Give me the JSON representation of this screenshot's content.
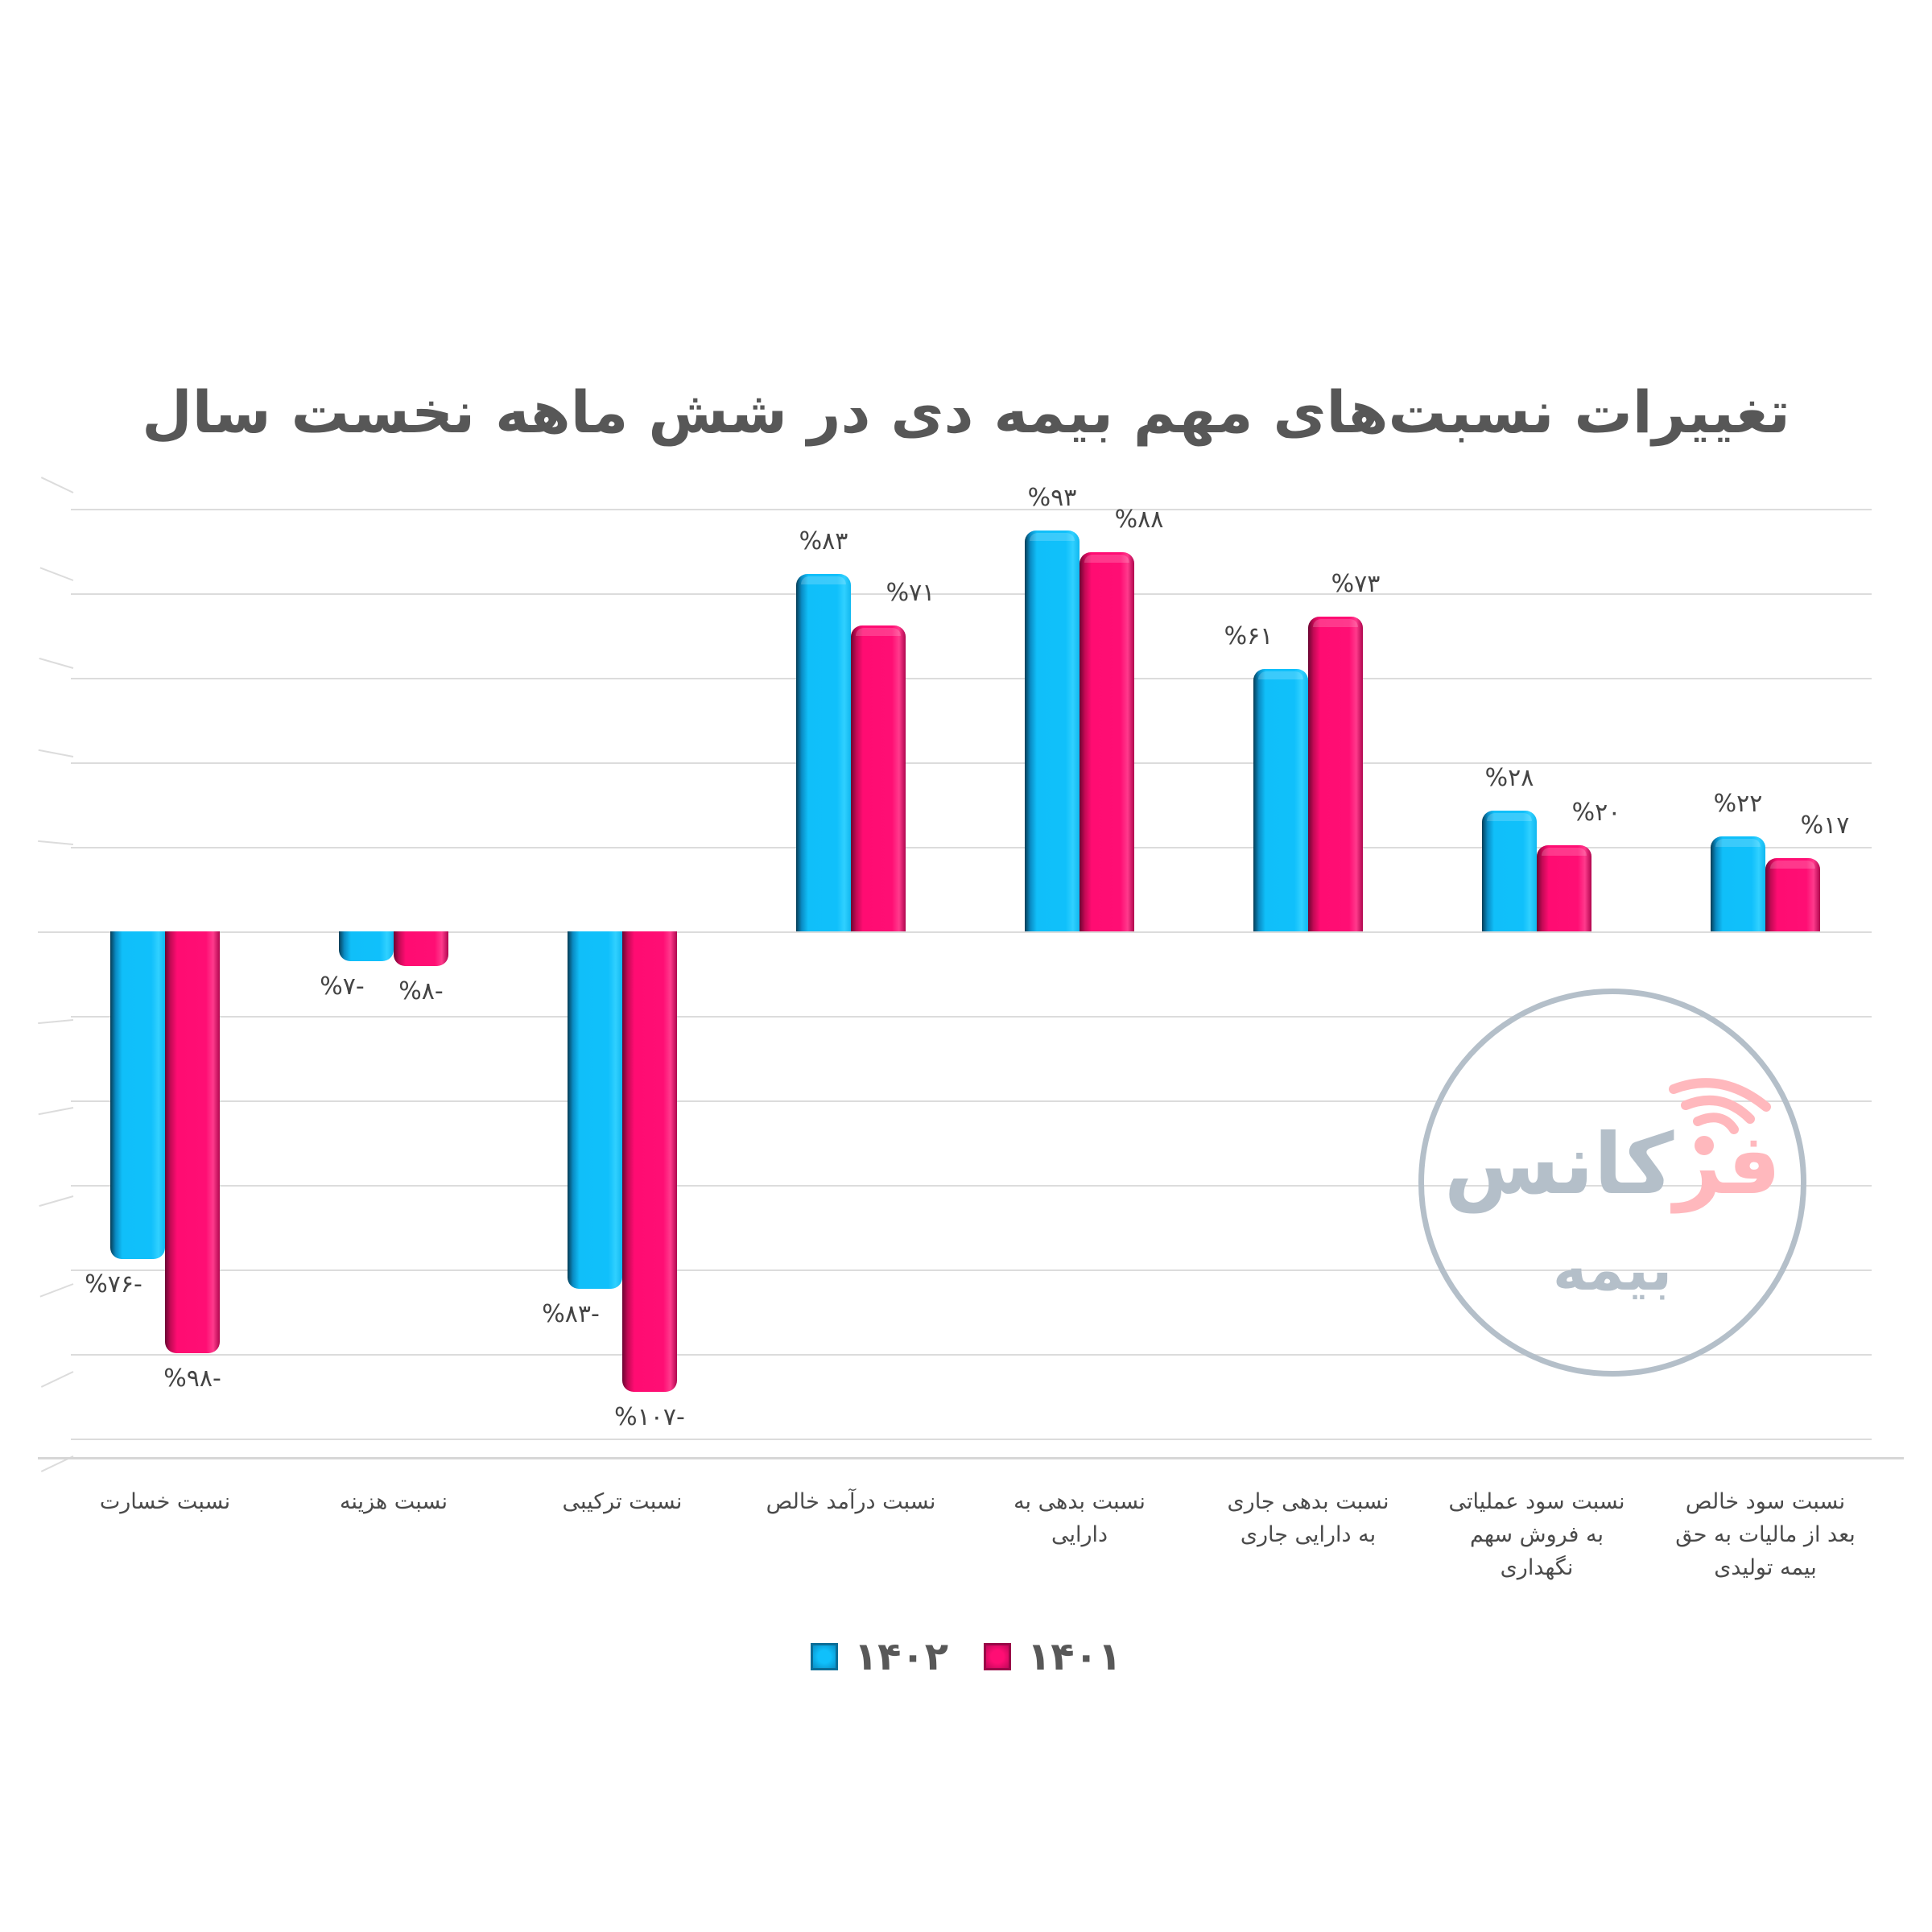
{
  "chart_data": {
    "type": "bar",
    "title": "تغییرات نسبت‌های مهم بیمه دی در شش ماهه نخست سال",
    "xlabel": "",
    "ylabel": "",
    "categories": [
      "نسبت خسارت",
      "نسبت هزینه",
      "نسبت ترکیبی",
      "نسبت درآمد خالص",
      "نسبت بدهی به دارایی",
      "نسبت بدهی جاری به دارایی جاری",
      "نسبت سود عملیاتی به فروش سهم نگهداری",
      "نسبت سود خالص بعد از مالیات به حق بیمه تولیدی"
    ],
    "series": [
      {
        "name": "۱۴۰۲",
        "color": "#10C0FB",
        "values": [
          -76,
          -7,
          -83,
          83,
          93,
          61,
          28,
          22
        ]
      },
      {
        "name": "۱۴۰۱",
        "color": "#FF0E74",
        "values": [
          -98,
          -8,
          -107,
          71,
          88,
          73,
          20,
          17
        ]
      }
    ],
    "ylim": [
      -120,
      100
    ],
    "grid": true,
    "y_tick_labels_visible": false,
    "legend_position": "bottom",
    "style": "3d-clustered-column"
  },
  "header": {
    "title": "تغییرات نسبت‌های مهم بیمه دی در شش ماهه نخست سال"
  },
  "value_labels": {
    "s1402": [
      "%۷۶-",
      "%۷-",
      "%۸۳-",
      "%۸۳",
      "%۹۳",
      "%۶۱",
      "%۲۸",
      "%۲۲"
    ],
    "s1401": [
      "%۹۸-",
      "%۸-",
      "%۱۰۷-",
      "%۷۱",
      "%۸۸",
      "%۷۳",
      "%۲۰",
      "%۱۷"
    ]
  },
  "category_labels": [
    [
      "نسبت خسارت"
    ],
    [
      "نسبت هزینه"
    ],
    [
      "نسبت ترکیبی"
    ],
    [
      "نسبت درآمد خالص"
    ],
    [
      "نسبت بدهی به",
      "دارایی"
    ],
    [
      "نسبت بدهی جاری",
      "به دارایی جاری"
    ],
    [
      "نسبت سود عملیاتی",
      "به فروش سهم",
      "نگهداری"
    ],
    [
      "نسبت سود خالص",
      "بعد از مالیات به حق",
      "بیمه تولیدی"
    ]
  ],
  "legend": {
    "items": [
      {
        "label": "۱۴۰۲",
        "color": "#10C0FB"
      },
      {
        "label": "۱۴۰۱",
        "color": "#FF0E74"
      }
    ]
  },
  "watermark": {
    "brand_accent": "فر",
    "brand_rest": "کانس",
    "sub": "بیمه",
    "ring_color": "#B4BFC9",
    "accent_color": "#FFB8BD"
  }
}
